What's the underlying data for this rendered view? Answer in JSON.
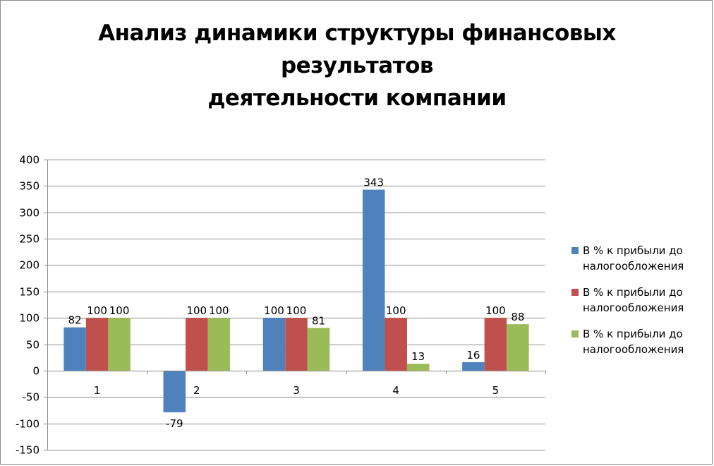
{
  "chart_data": {
    "type": "bar",
    "title": "Анализ динамики структуры финансовых результатов\nдеятельности компании",
    "title_lines": [
      "Анализ динамики структуры финансовых",
      "результатов",
      "деятельности компании"
    ],
    "categories": [
      "1",
      "2",
      "3",
      "4",
      "5"
    ],
    "series": [
      {
        "name": "В % к прибыли до налогообложения",
        "color": "#4f81bd",
        "values": [
          82,
          -79,
          100,
          343,
          16
        ]
      },
      {
        "name": "В % к прибыли до налогообложения",
        "color": "#c0504d",
        "values": [
          100,
          100,
          100,
          100,
          100
        ]
      },
      {
        "name": "В % к прибыли до налогообложения",
        "color": "#9bbb59",
        "values": [
          100,
          100,
          81,
          13,
          88
        ]
      }
    ],
    "ylim": [
      -150,
      400
    ],
    "ytick_step": 50,
    "yticks": [
      "400",
      "350",
      "300",
      "250",
      "200",
      "150",
      "100",
      "50",
      "0",
      "-50",
      "-100",
      "-150"
    ],
    "data_labels": true,
    "grid": true,
    "legend": "right",
    "legend_lines": [
      [
        "В % к прибыли до",
        "налогообложения"
      ],
      [
        "В % к прибыли до",
        "налогообложения"
      ],
      [
        "В % к прибыли до",
        "налогообложения"
      ]
    ]
  }
}
